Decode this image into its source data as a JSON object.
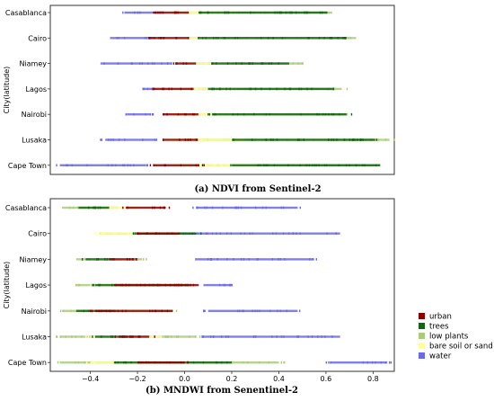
{
  "chart_data": [
    {
      "type": "scatter",
      "panel": "top",
      "caption": "(a) NDVI from Sentinel-2",
      "ylabel": "City(latitude)",
      "categories": [
        "Casablanca",
        "Cairo",
        "Niamey",
        "Lagos",
        "Nairobi",
        "Lusaka",
        "Cape Town"
      ],
      "xlim": [
        -0.56,
        0.88
      ],
      "grid": false,
      "series": [
        {
          "name": "urban",
          "color": "#8b0000",
          "ranges": [
            [
              -0.13,
              0.02
            ],
            [
              -0.15,
              0.02
            ],
            [
              -0.03,
              0.05
            ],
            [
              -0.13,
              0.04
            ],
            [
              -0.09,
              0.06
            ],
            [
              -0.09,
              0.05
            ],
            [
              -0.13,
              0.06
            ]
          ]
        },
        {
          "name": "trees",
          "color": "#116611",
          "ranges": [
            [
              0.06,
              0.6
            ],
            [
              0.06,
              0.68
            ],
            [
              0.12,
              0.44
            ],
            [
              0.1,
              0.62
            ],
            [
              0.12,
              0.68
            ],
            [
              0.2,
              0.8
            ],
            [
              0.2,
              0.82
            ]
          ]
        },
        {
          "name": "low plants",
          "color": "#a9cc7a",
          "ranges": [
            [
              0.0,
              0.62
            ],
            [
              0.0,
              0.72
            ],
            [
              0.04,
              0.5
            ],
            [
              0.0,
              0.66
            ],
            [
              0.0,
              0.68
            ],
            [
              0.0,
              0.86
            ],
            [
              0.0,
              0.8
            ]
          ]
        },
        {
          "name": "bare soil or sand",
          "color": "#ffff99",
          "ranges": [
            [
              -0.05,
              0.2
            ],
            [
              -0.02,
              0.15
            ],
            [
              0.0,
              0.2
            ],
            [
              -0.05,
              0.2
            ],
            [
              -0.05,
              0.2
            ],
            [
              -0.05,
              0.25
            ],
            [
              -0.05,
              0.3
            ]
          ]
        },
        {
          "name": "water",
          "color": "#6a6ae8",
          "ranges": [
            [
              -0.25,
              -0.12
            ],
            [
              -0.31,
              -0.12
            ],
            [
              -0.35,
              -0.05
            ],
            [
              -0.17,
              -0.12
            ],
            [
              -0.24,
              -0.14
            ],
            [
              -0.33,
              -0.12
            ],
            [
              -0.52,
              -0.16
            ]
          ]
        }
      ]
    },
    {
      "type": "scatter",
      "panel": "bottom",
      "caption": "(b) MNDWI from Senentinel-2",
      "ylabel": "City(latitude)",
      "categories": [
        "Casablanca",
        "Cairo",
        "Niamey",
        "Lagos",
        "Nairobi",
        "Lusaka",
        "Cape Town"
      ],
      "xlim": [
        -0.57,
        0.89
      ],
      "xticks": [
        -0.4,
        -0.2,
        0.0,
        0.2,
        0.4,
        0.6,
        0.8
      ],
      "xtick_labels": [
        "−0.4",
        "−0.2",
        "0.0",
        "0.2",
        "0.4",
        "0.6",
        "0.8"
      ],
      "grid": false,
      "series": [
        {
          "name": "urban",
          "color": "#8b0000",
          "ranges": [
            [
              -0.25,
              -0.08
            ],
            [
              -0.2,
              -0.02
            ],
            [
              -0.32,
              -0.22
            ],
            [
              -0.3,
              0.06
            ],
            [
              -0.38,
              -0.05
            ],
            [
              -0.28,
              -0.15
            ],
            [
              -0.2,
              0.0
            ]
          ]
        },
        {
          "name": "trees",
          "color": "#116611",
          "ranges": [
            [
              -0.45,
              -0.32
            ],
            [
              -0.2,
              0.05
            ],
            [
              -0.42,
              -0.3
            ],
            [
              -0.38,
              0.02
            ],
            [
              -0.46,
              -0.3
            ],
            [
              -0.38,
              -0.25
            ],
            [
              -0.3,
              0.2
            ]
          ]
        },
        {
          "name": "low plants",
          "color": "#a9cc7a",
          "ranges": [
            [
              -0.52,
              -0.28
            ],
            [
              -0.35,
              0.05
            ],
            [
              -0.46,
              -0.18
            ],
            [
              -0.46,
              -0.1
            ],
            [
              -0.52,
              -0.05
            ],
            [
              -0.53,
              0.05
            ],
            [
              -0.53,
              0.4
            ]
          ]
        },
        {
          "name": "bare soil or sand",
          "color": "#ffff99",
          "ranges": [
            [
              -0.4,
              -0.2
            ],
            [
              -0.36,
              -0.1
            ],
            [
              -0.4,
              -0.2
            ],
            [
              -0.4,
              -0.15
            ],
            [
              -0.4,
              -0.15
            ],
            [
              -0.4,
              -0.1
            ],
            [
              -0.4,
              0.0
            ]
          ]
        },
        {
          "name": "water",
          "color": "#6a6ae8",
          "ranges": [
            [
              0.05,
              0.48
            ],
            [
              0.0,
              0.66
            ],
            [
              0.05,
              0.55
            ],
            [
              0.08,
              0.2
            ],
            [
              0.1,
              0.48
            ],
            [
              0.08,
              0.66
            ],
            [
              0.62,
              0.86
            ]
          ]
        }
      ],
      "legend": {
        "placement": "right"
      }
    }
  ]
}
